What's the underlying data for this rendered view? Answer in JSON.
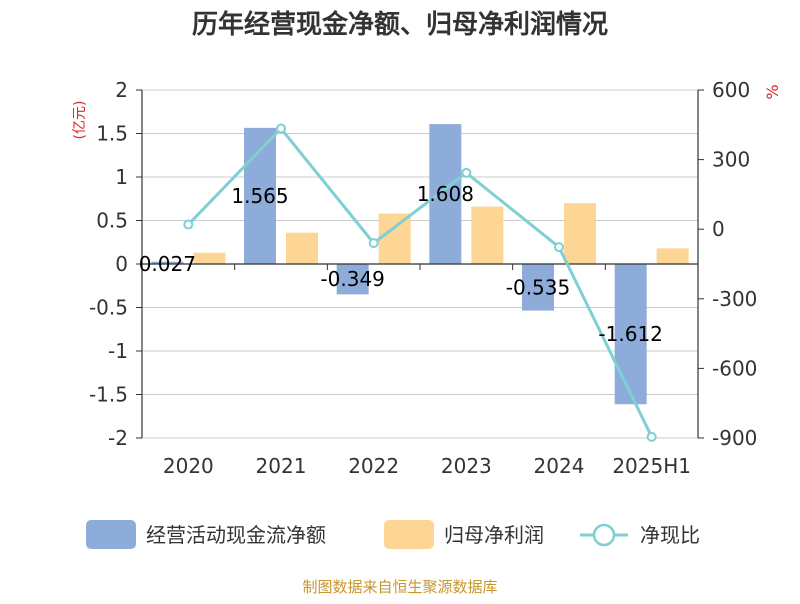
{
  "chart_data": {
    "type": "bar",
    "title": "历年经营现金净额、归母净利润情况",
    "categories": [
      "2020",
      "2021",
      "2022",
      "2023",
      "2024",
      "2025H1"
    ],
    "series": [
      {
        "name": "经营活动现金流净额",
        "type": "bar",
        "axis": "left",
        "color": "#8eacd9",
        "values": [
          0.027,
          1.565,
          -0.349,
          1.608,
          -0.535,
          -1.612
        ],
        "labels": [
          "0.027",
          "1.565",
          "-0.349",
          "1.608",
          "-0.535",
          "-1.612"
        ]
      },
      {
        "name": "归母净利润",
        "type": "bar",
        "axis": "left",
        "color": "#fdd595",
        "values": [
          0.13,
          0.36,
          0.58,
          0.66,
          0.7,
          0.18
        ]
      },
      {
        "name": "净现比",
        "type": "line",
        "axis": "right",
        "color": "#7fcfd3",
        "values": [
          20,
          434,
          -60,
          243,
          -77,
          -895
        ]
      }
    ],
    "y_left": {
      "unit": "(亿元)",
      "range": [
        -2,
        2
      ],
      "ticks": [
        "2",
        "1.5",
        "1",
        "0.5",
        "0",
        "-0.5",
        "-1",
        "-1.5",
        "-2"
      ]
    },
    "y_right": {
      "unit": "%",
      "range": [
        -900,
        600
      ],
      "ticks": [
        "600",
        "300",
        "0",
        "-300",
        "-600",
        "-900"
      ]
    },
    "grid": true,
    "legend_position": "bottom"
  },
  "source": "制图数据来自恒生聚源数据库"
}
